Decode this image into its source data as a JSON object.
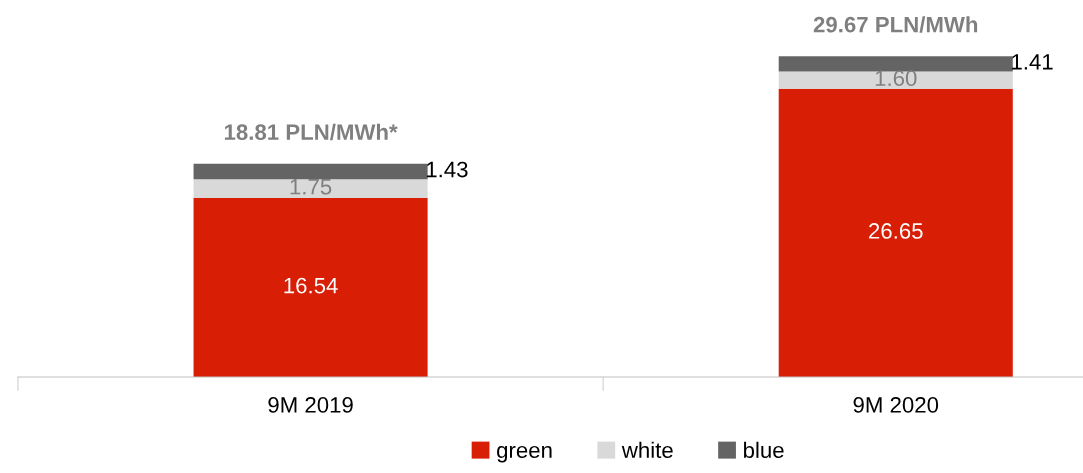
{
  "chart_data": {
    "type": "bar",
    "stacked": true,
    "categories": [
      "9M 2019",
      "9M 2020"
    ],
    "series": [
      {
        "name": "green",
        "color": "#d81e05",
        "values": [
          16.54,
          26.65
        ],
        "value_labels": [
          "16.54",
          "26.65"
        ]
      },
      {
        "name": "white",
        "color": "#d9d9d9",
        "values": [
          1.75,
          1.6
        ],
        "value_labels": [
          "1.75",
          "1.60"
        ]
      },
      {
        "name": "blue",
        "color": "#646464",
        "values": [
          1.43,
          1.41
        ],
        "value_labels": [
          "1.43",
          "1.41"
        ]
      }
    ],
    "annotations": [
      "18.81 PLN/MWh*",
      "29.67 PLN/MWh"
    ],
    "legend": "bottom",
    "grid": false
  }
}
